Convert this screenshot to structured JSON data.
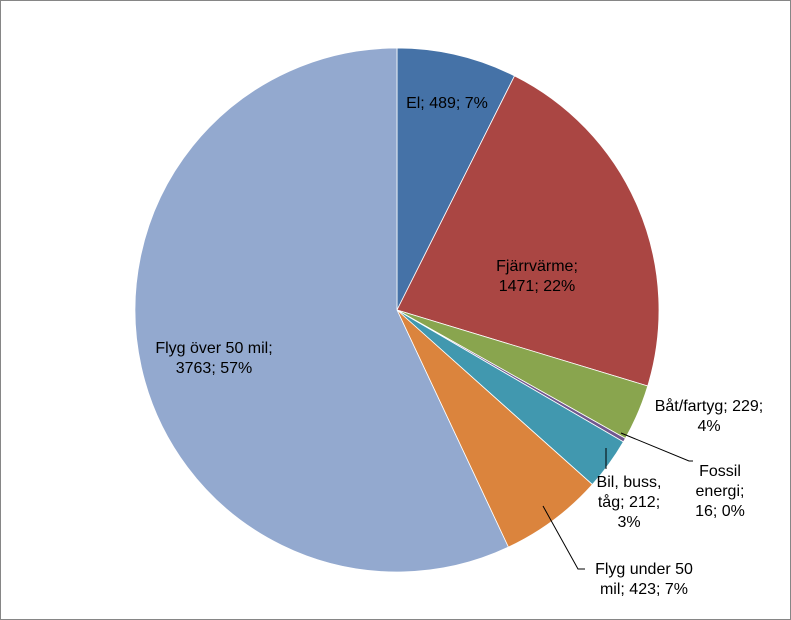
{
  "chart_data": {
    "type": "pie",
    "title": "",
    "start_angle_deg": 0,
    "direction": "clockwise",
    "legend": "none",
    "slices": [
      {
        "name": "El",
        "value": 489,
        "percent": "7%",
        "color": "#4572A7",
        "label_lines": [
          "El; 489; 7%"
        ]
      },
      {
        "name": "Fjärrvärme",
        "value": 1471,
        "percent": "22%",
        "color": "#AA4643",
        "label_lines": [
          "Fjärrvärme;",
          "1471; 22%"
        ]
      },
      {
        "name": "Båt/fartyg",
        "value": 229,
        "percent": "4%",
        "color": "#89A54E",
        "label_lines": [
          "Båt/fartyg; 229;",
          "4%"
        ]
      },
      {
        "name": "Fossil energi",
        "value": 16,
        "percent": "0%",
        "color": "#71588F",
        "label_lines": [
          "Fossil",
          "energi;",
          "16; 0%"
        ]
      },
      {
        "name": "Bil, buss, tåg",
        "value": 212,
        "percent": "3%",
        "color": "#4198AF",
        "label_lines": [
          "Bil, buss,",
          "tåg; 212;",
          "3%"
        ]
      },
      {
        "name": "Flyg under 50 mil",
        "value": 423,
        "percent": "7%",
        "color": "#DB843D",
        "label_lines": [
          "Flyg under 50",
          "mil; 423; 7%"
        ]
      },
      {
        "name": "Flyg över 50 mil",
        "value": 3763,
        "percent": "57%",
        "color": "#93A9CF",
        "label_lines": [
          "Flyg över 50 mil;",
          "3763; 57%"
        ]
      }
    ]
  }
}
